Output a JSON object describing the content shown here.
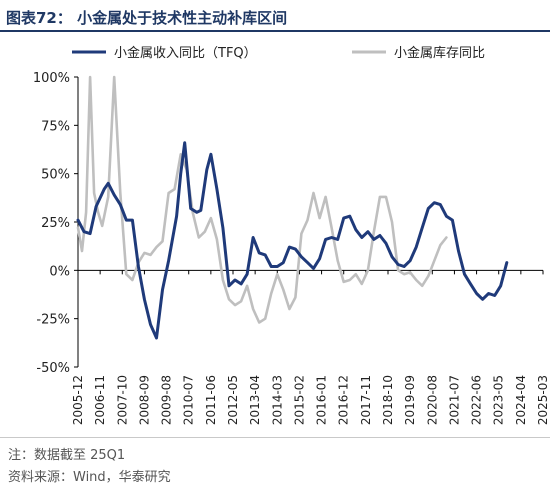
{
  "header": {
    "title": "图表72：  小金属处于技术性主动补库区间"
  },
  "footer": {
    "note": "注：数据截至 25Q1",
    "source": "资料来源：Wind，华泰研究"
  },
  "colors": {
    "series1": "#1f3a7a",
    "series2": "#bfbfbf",
    "axis": "#000000"
  },
  "chart_data": {
    "type": "line",
    "title": "",
    "ylim": [
      -50,
      100
    ],
    "y_ticks": [
      100,
      75,
      50,
      25,
      0,
      -25,
      -50
    ],
    "y_tick_labels": [
      "100%",
      "75%",
      "50%",
      "25%",
      "0%",
      "-25%",
      "-50%"
    ],
    "x_tick_labels": [
      "2005-12",
      "2006-11",
      "2007-10",
      "2008-09",
      "2009-08",
      "2010-07",
      "2011-06",
      "2012-05",
      "2013-04",
      "2014-03",
      "2015-02",
      "2016-01",
      "2016-12",
      "2017-11",
      "2018-10",
      "2019-09",
      "2020-08",
      "2021-07",
      "2022-06",
      "2023-05",
      "2024-04",
      "2025-03"
    ],
    "x_unit": "month",
    "x_start": "2005-12",
    "x_end": "2025-03",
    "legend_position": "top",
    "grid": false,
    "series": [
      {
        "name": "小金属收入同比（TFQ）",
        "color": "#1f3a7a",
        "points": [
          [
            "2005-12",
            26
          ],
          [
            "2006-03",
            20
          ],
          [
            "2006-06",
            19
          ],
          [
            "2006-09",
            33
          ],
          [
            "2007-01",
            42
          ],
          [
            "2007-03",
            45
          ],
          [
            "2007-06",
            39
          ],
          [
            "2007-09",
            34
          ],
          [
            "2007-12",
            26
          ],
          [
            "2008-03",
            26
          ],
          [
            "2008-06",
            2
          ],
          [
            "2008-09",
            -15
          ],
          [
            "2008-12",
            -28
          ],
          [
            "2009-03",
            -35
          ],
          [
            "2009-06",
            -10
          ],
          [
            "2009-09",
            5
          ],
          [
            "2010-01",
            28
          ],
          [
            "2010-03",
            50
          ],
          [
            "2010-05",
            66
          ],
          [
            "2010-08",
            32
          ],
          [
            "2010-11",
            30
          ],
          [
            "2011-01",
            31
          ],
          [
            "2011-04",
            52
          ],
          [
            "2011-06",
            60
          ],
          [
            "2011-09",
            42
          ],
          [
            "2011-12",
            22
          ],
          [
            "2012-03",
            -8
          ],
          [
            "2012-06",
            -5
          ],
          [
            "2012-09",
            -7
          ],
          [
            "2012-12",
            -2
          ],
          [
            "2013-03",
            17
          ],
          [
            "2013-06",
            9
          ],
          [
            "2013-09",
            8
          ],
          [
            "2013-12",
            2
          ],
          [
            "2014-03",
            2
          ],
          [
            "2014-06",
            4
          ],
          [
            "2014-09",
            12
          ],
          [
            "2014-12",
            11
          ],
          [
            "2015-03",
            7
          ],
          [
            "2015-06",
            4
          ],
          [
            "2015-09",
            1
          ],
          [
            "2015-12",
            6
          ],
          [
            "2016-03",
            16
          ],
          [
            "2016-06",
            17
          ],
          [
            "2016-09",
            16
          ],
          [
            "2016-12",
            27
          ],
          [
            "2017-03",
            28
          ],
          [
            "2017-06",
            21
          ],
          [
            "2017-09",
            17
          ],
          [
            "2017-12",
            20
          ],
          [
            "2018-03",
            16
          ],
          [
            "2018-06",
            18
          ],
          [
            "2018-09",
            14
          ],
          [
            "2018-12",
            7
          ],
          [
            "2019-03",
            3
          ],
          [
            "2019-06",
            2
          ],
          [
            "2019-09",
            5
          ],
          [
            "2019-12",
            12
          ],
          [
            "2020-03",
            22
          ],
          [
            "2020-06",
            32
          ],
          [
            "2020-09",
            35
          ],
          [
            "2020-12",
            34
          ],
          [
            "2021-03",
            28
          ],
          [
            "2021-06",
            26
          ],
          [
            "2021-09",
            10
          ],
          [
            "2021-12",
            -2
          ],
          [
            "2022-03",
            -7
          ],
          [
            "2022-06",
            -12
          ],
          [
            "2022-09",
            -15
          ],
          [
            "2022-12",
            -12
          ],
          [
            "2023-03",
            -13
          ],
          [
            "2023-06",
            -8
          ],
          [
            "2023-09",
            4
          ]
        ]
      },
      {
        "name": "小金属库存同比",
        "color": "#bfbfbf",
        "points": [
          [
            "2005-12",
            22
          ],
          [
            "2006-02",
            10
          ],
          [
            "2006-04",
            30
          ],
          [
            "2006-06",
            100
          ],
          [
            "2006-08",
            40
          ],
          [
            "2006-10",
            30
          ],
          [
            "2006-12",
            23
          ],
          [
            "2007-03",
            38
          ],
          [
            "2007-06",
            100
          ],
          [
            "2007-09",
            40
          ],
          [
            "2007-12",
            -2
          ],
          [
            "2008-03",
            -5
          ],
          [
            "2008-06",
            4
          ],
          [
            "2008-09",
            9
          ],
          [
            "2008-12",
            8
          ],
          [
            "2009-03",
            12
          ],
          [
            "2009-06",
            15
          ],
          [
            "2009-09",
            40
          ],
          [
            "2009-12",
            42
          ],
          [
            "2010-03",
            60
          ],
          [
            "2010-06",
            52
          ],
          [
            "2010-09",
            30
          ],
          [
            "2010-12",
            17
          ],
          [
            "2011-03",
            20
          ],
          [
            "2011-06",
            27
          ],
          [
            "2011-09",
            16
          ],
          [
            "2011-12",
            -5
          ],
          [
            "2012-03",
            -15
          ],
          [
            "2012-06",
            -18
          ],
          [
            "2012-09",
            -16
          ],
          [
            "2012-12",
            -8
          ],
          [
            "2013-03",
            -20
          ],
          [
            "2013-06",
            -27
          ],
          [
            "2013-09",
            -25
          ],
          [
            "2013-12",
            -12
          ],
          [
            "2014-03",
            -2
          ],
          [
            "2014-06",
            -10
          ],
          [
            "2014-09",
            -20
          ],
          [
            "2014-12",
            -14
          ],
          [
            "2015-03",
            19
          ],
          [
            "2015-06",
            26
          ],
          [
            "2015-09",
            40
          ],
          [
            "2015-12",
            27
          ],
          [
            "2016-03",
            38
          ],
          [
            "2016-06",
            22
          ],
          [
            "2016-09",
            5
          ],
          [
            "2016-12",
            -6
          ],
          [
            "2017-03",
            -5
          ],
          [
            "2017-06",
            -2
          ],
          [
            "2017-09",
            -7
          ],
          [
            "2017-12",
            0
          ],
          [
            "2018-03",
            20
          ],
          [
            "2018-06",
            38
          ],
          [
            "2018-09",
            38
          ],
          [
            "2018-12",
            25
          ],
          [
            "2019-03",
            0
          ],
          [
            "2019-06",
            -2
          ],
          [
            "2019-09",
            -1
          ],
          [
            "2019-12",
            -5
          ],
          [
            "2020-03",
            -8
          ],
          [
            "2020-06",
            -3
          ],
          [
            "2020-09",
            5
          ],
          [
            "2020-12",
            13
          ],
          [
            "2021-03",
            17
          ]
        ]
      }
    ]
  }
}
